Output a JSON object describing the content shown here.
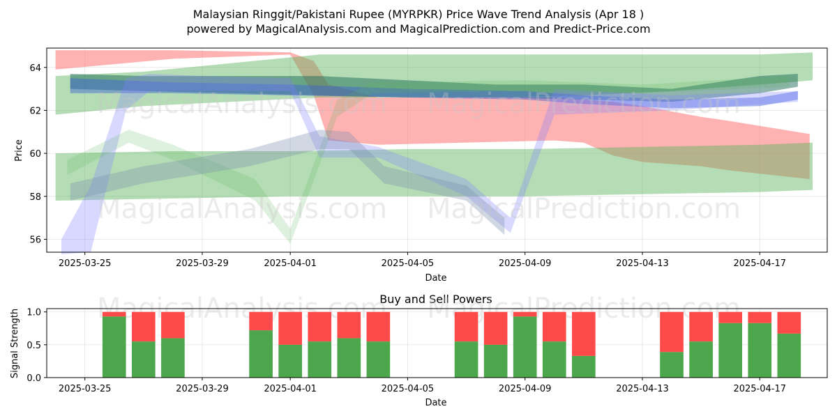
{
  "title_line1": "Malaysian Ringgit/Pakistani Rupee (MYRPKR) Price Wave Trend Analysis (Apr 18 )",
  "title_line2": "powered by MagicalAnalysis.com and MagicalPrediction.com and Predict-Price.com",
  "watermarks": [
    "MagicalAnalysis.com",
    "MagicalPrediction.com"
  ],
  "chart_data": [
    {
      "type": "area",
      "title": "",
      "xlabel": "Date",
      "ylabel": "Price",
      "x_start": "2025-03-24",
      "xlim_days": [
        -0.3,
        26.3
      ],
      "ylim": [
        55.4,
        64.9
      ],
      "yticks": [
        56,
        58,
        60,
        62,
        64
      ],
      "ytick_labels": [
        "56",
        "58",
        "60",
        "62",
        "64"
      ],
      "xticks_days": [
        1,
        5,
        8,
        12,
        16,
        20,
        24
      ],
      "xtick_labels": [
        "2025-03-25",
        "2025-03-29",
        "2025-04-01",
        "2025-04-05",
        "2025-04-09",
        "2025-04-13",
        "2025-04-17"
      ],
      "grid": true,
      "bands": [
        {
          "name": "red wave",
          "color": "#ff7f7f",
          "opacity": 0.6,
          "x": [
            0,
            4,
            8,
            8.8,
            9.3,
            11,
            17,
            18,
            19,
            20,
            22,
            23,
            25.7
          ],
          "upper": [
            64.8,
            64.8,
            64.7,
            64.3,
            63.2,
            62.6,
            62.6,
            62.5,
            62.4,
            62.2,
            61.7,
            61.5,
            60.9
          ],
          "lower": [
            63.9,
            64.4,
            64.6,
            62.7,
            60.6,
            60.4,
            60.6,
            60.5,
            59.9,
            59.6,
            59.4,
            59.2,
            58.8
          ]
        },
        {
          "name": "green outer wave",
          "color": "#5cb35c",
          "opacity": 0.45,
          "x": [
            0,
            3,
            6,
            9,
            12,
            15,
            18,
            21,
            24,
            25.8
          ],
          "upper": [
            63.6,
            63.8,
            64.2,
            64.6,
            64.6,
            64.6,
            64.6,
            64.6,
            64.6,
            64.7
          ],
          "lower": [
            61.8,
            62.2,
            62.4,
            62.6,
            62.6,
            62.6,
            62.7,
            62.9,
            63.2,
            63.4
          ]
        },
        {
          "name": "green lower wave",
          "color": "#5cb35c",
          "opacity": 0.45,
          "x": [
            0,
            4,
            8,
            12,
            16,
            20,
            24,
            25.8
          ],
          "upper": [
            60.0,
            60.1,
            60.1,
            60.2,
            60.2,
            60.3,
            60.4,
            60.5
          ],
          "lower": [
            57.8,
            57.9,
            58.0,
            58.0,
            58.0,
            58.1,
            58.2,
            58.3
          ]
        },
        {
          "name": "dark teal wave",
          "color": "#1f6b5a",
          "opacity": 0.5,
          "x": [
            0.5,
            3,
            6,
            9,
            12,
            15,
            18,
            21,
            24,
            25.3
          ],
          "upper": [
            63.7,
            63.6,
            63.6,
            63.6,
            63.4,
            63.2,
            63.2,
            63.0,
            63.6,
            63.7
          ],
          "lower": [
            63.0,
            62.9,
            62.8,
            62.7,
            62.6,
            62.6,
            62.5,
            62.4,
            62.8,
            63.1
          ]
        },
        {
          "name": "blue wave",
          "color": "#3b5fd6",
          "opacity": 0.45,
          "x": [
            0.5,
            4,
            8,
            12,
            16,
            18,
            21,
            24,
            25.3
          ],
          "upper": [
            63.5,
            63.3,
            63.2,
            63.0,
            62.9,
            62.7,
            62.5,
            62.6,
            62.9
          ],
          "lower": [
            62.8,
            62.8,
            62.7,
            62.6,
            62.5,
            62.3,
            62.1,
            62.2,
            62.5
          ]
        },
        {
          "name": "blue spike wave",
          "color": "#8080ff",
          "opacity": 0.3,
          "x": [
            0.2,
            1.2,
            2.4,
            3.2,
            5,
            8,
            9,
            11,
            14,
            15.5,
            17,
            21,
            25.3
          ],
          "upper": [
            56.0,
            58.5,
            63.5,
            63.7,
            63.6,
            63.5,
            60.8,
            60.3,
            58.8,
            57.0,
            63.0,
            62.7,
            62.9
          ],
          "lower": [
            55.3,
            55.4,
            62.0,
            62.9,
            62.9,
            62.9,
            59.8,
            59.8,
            58.0,
            56.3,
            61.8,
            62.0,
            62.4
          ]
        },
        {
          "name": "green light wave",
          "color": "#5cb35c",
          "opacity": 0.2,
          "x": [
            0.4,
            2.5,
            4,
            6.8,
            8,
            9.6,
            10.8,
            16,
            20,
            25
          ],
          "upper": [
            59.7,
            61.1,
            60.4,
            58.8,
            56.5,
            62.5,
            63.3,
            63.4,
            63.2,
            63.6
          ],
          "lower": [
            59.0,
            60.5,
            59.7,
            57.8,
            55.8,
            61.7,
            62.8,
            62.9,
            62.8,
            63.1
          ]
        },
        {
          "name": "bluegray wave",
          "color": "#7a8fb0",
          "opacity": 0.35,
          "x": [
            0.5,
            3,
            6.6,
            9,
            10,
            11.2,
            14,
            15.3
          ],
          "upper": [
            58.6,
            59.4,
            60.2,
            61.1,
            61.0,
            59.4,
            58.5,
            57.0
          ],
          "lower": [
            57.8,
            58.6,
            59.4,
            60.2,
            60.2,
            58.6,
            57.8,
            56.2
          ]
        }
      ]
    },
    {
      "type": "bar",
      "title": "Buy and Sell Powers",
      "xlabel": "Date",
      "ylabel": "Signal Strength",
      "ylim": [
        0,
        1.05
      ],
      "yticks": [
        0,
        0.5,
        1.0
      ],
      "ytick_labels": [
        "0.0",
        "0.5",
        "1.0"
      ],
      "x_start": "2025-03-24",
      "xlim_days": [
        -0.3,
        26.3
      ],
      "xticks_days": [
        1,
        5,
        8,
        12,
        16,
        20,
        24
      ],
      "xtick_labels": [
        "2025-03-25",
        "2025-03-29",
        "2025-04-01",
        "2025-04-05",
        "2025-04-09",
        "2025-04-13",
        "2025-04-17"
      ],
      "grid": true,
      "buy_color": "#4ca64c",
      "sell_color": "#ff4a4a",
      "series": [
        {
          "name": "Buy",
          "days": [
            2,
            3,
            4,
            7,
            8,
            9,
            10,
            11,
            14,
            15,
            16,
            17,
            18,
            21,
            22,
            23,
            24,
            25
          ],
          "values": [
            0.93,
            0.55,
            0.6,
            0.72,
            0.5,
            0.55,
            0.6,
            0.55,
            0.55,
            0.5,
            0.93,
            0.55,
            0.33,
            0.39,
            0.55,
            0.83,
            0.83,
            0.67
          ]
        },
        {
          "name": "Sell",
          "days": [
            2,
            3,
            4,
            7,
            8,
            9,
            10,
            11,
            14,
            15,
            16,
            17,
            18,
            21,
            22,
            23,
            24,
            25
          ],
          "values": [
            0.07,
            0.45,
            0.4,
            0.28,
            0.5,
            0.45,
            0.4,
            0.45,
            0.45,
            0.5,
            0.07,
            0.45,
            0.67,
            0.61,
            0.45,
            0.17,
            0.17,
            0.33
          ]
        }
      ]
    }
  ]
}
